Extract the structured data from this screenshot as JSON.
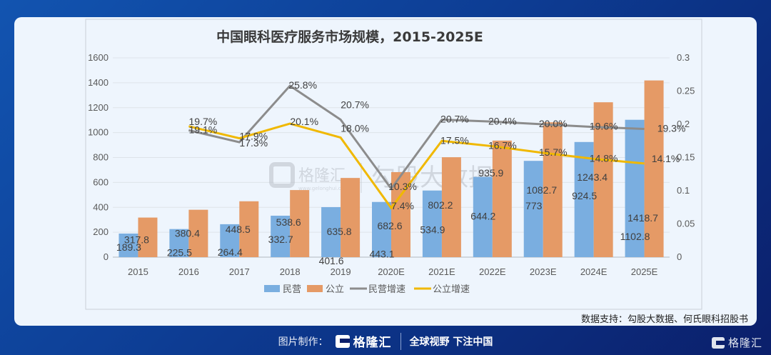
{
  "chart_data": {
    "type": "bar",
    "title": "中国眼科医疗服务市场规模，2015-2025E",
    "categories": [
      "2015",
      "2016",
      "2017",
      "2018",
      "2019",
      "2020E",
      "2021E",
      "2022E",
      "2023E",
      "2024E",
      "2025E"
    ],
    "series": [
      {
        "name": "民营",
        "type": "bar",
        "axis": "left",
        "color": "#7aaee0",
        "values": [
          189.3,
          225.5,
          264.4,
          332.7,
          401.6,
          443.1,
          534.9,
          644.2,
          773,
          924.5,
          1102.8
        ],
        "labels": [
          "189.3",
          "225.5",
          "264.4",
          "332.7",
          "401.6",
          "443.1",
          "534.9",
          "644.2",
          "773",
          "924.5",
          "1102.8"
        ]
      },
      {
        "name": "公立",
        "type": "bar",
        "axis": "left",
        "color": "#e59a66",
        "values": [
          317.8,
          380.4,
          448.5,
          538.6,
          635.8,
          682.6,
          802.2,
          935.9,
          1082.7,
          1243.4,
          1418.7
        ],
        "labels": [
          "317.8",
          "380.4",
          "448.5",
          "538.6",
          "635.8",
          "682.6",
          "802.2",
          "935.9",
          "1082.7",
          "1243.4",
          "1418.7"
        ]
      },
      {
        "name": "民营增速",
        "type": "line",
        "axis": "right",
        "color": "#8c8c8c",
        "values": [
          null,
          0.191,
          0.173,
          0.258,
          0.207,
          0.103,
          0.207,
          0.204,
          0.2,
          0.196,
          0.193
        ],
        "labels": [
          null,
          "19.1%",
          "17.3%",
          "25.8%",
          "20.7%",
          "10.3%",
          "20.7%",
          "20.4%",
          "20.0%",
          "19.6%",
          "19.3%"
        ]
      },
      {
        "name": "公立增速",
        "type": "line",
        "axis": "right",
        "color": "#f0b800",
        "values": [
          null,
          0.197,
          0.179,
          0.201,
          0.18,
          0.074,
          0.175,
          0.167,
          0.157,
          0.148,
          0.141
        ],
        "labels": [
          null,
          "19.7%",
          "17.9%",
          "20.1%",
          "18.0%",
          "7.4%",
          "17.5%",
          "16.7%",
          "15.7%",
          "14.8%",
          "14.1%"
        ]
      }
    ],
    "xlabel": "",
    "ylabel": "",
    "ylim": [
      0,
      1600
    ],
    "yticks": [
      "0",
      "200",
      "400",
      "600",
      "800",
      "1000",
      "1200",
      "1400",
      "1600"
    ],
    "y2lim": [
      0,
      0.3
    ],
    "y2ticks": [
      "0",
      "0.05",
      "0.1",
      "0.15",
      "0.2",
      "0.25",
      "0.3"
    ],
    "grid": true,
    "legend_position": "bottom"
  },
  "watermark": {
    "brand": "格隆汇",
    "brand_url": "www.gelonghui.com",
    "partner": "勾股大数据"
  },
  "source_text": "数据支持：勾股大数据、何氏眼科招股书",
  "footer": {
    "made_by_label": "图片制作：",
    "brand": "格隆汇",
    "slogan": "全球视野 下注中国"
  },
  "corner_brand": "格隆汇"
}
